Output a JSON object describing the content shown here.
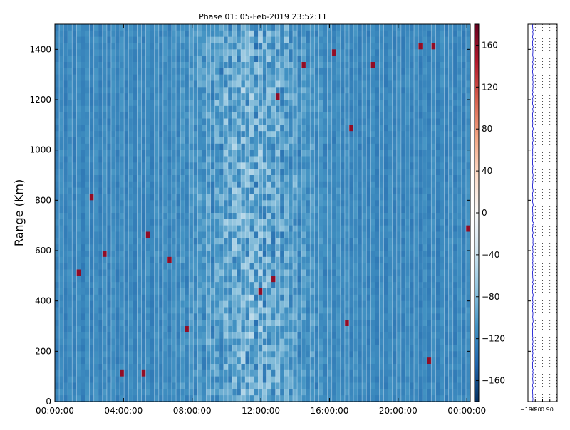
{
  "chart_data": [
    {
      "type": "heatmap",
      "title": "Phase 01: 05-Feb-2019 23:52:11",
      "xlabel": "",
      "ylabel": "Range (Km)",
      "x_tick_labels": [
        "00:00:00",
        "04:00:00",
        "08:00:00",
        "12:00:00",
        "16:00:00",
        "20:00:00",
        "00:00:00"
      ],
      "x_tick_hours": [
        0,
        4,
        8,
        12,
        16,
        20,
        24
      ],
      "xlim_hours": [
        0,
        24.2
      ],
      "y_ticks": [
        0,
        200,
        400,
        600,
        800,
        1000,
        1200,
        1400
      ],
      "ylim": [
        0,
        1500
      ],
      "colorbar": {
        "colormap": "RdBu_r",
        "range": [
          -180,
          180
        ],
        "ticks": [
          -160,
          -120,
          -80,
          -40,
          0,
          40,
          80,
          120,
          160
        ],
        "tick_labels": [
          "−160",
          "−120",
          "−80",
          "−40",
          "0",
          "40",
          "80",
          "120",
          "160"
        ]
      },
      "value_note": "dominant phase approx. -120 (blue); lighter values (-80 to -40) concentrated between about 08:00 and 15:00; sparse outliers reaching about 160"
    },
    {
      "type": "line",
      "title": "",
      "xlabel": "",
      "ylabel": "",
      "x_ticks": [
        -180,
        -90,
        0,
        90
      ],
      "x_tick_labels": [
        "−180",
        "−90",
        "0",
        "90"
      ],
      "xlim": [
        -180,
        180
      ],
      "ylim": [
        0,
        1500
      ],
      "grid": "vertical dotted",
      "series": [
        {
          "color": "#0000cc",
          "profile_mean_x": -120,
          "note": "range profile hugging about -120 with small scatter"
        }
      ]
    }
  ]
}
